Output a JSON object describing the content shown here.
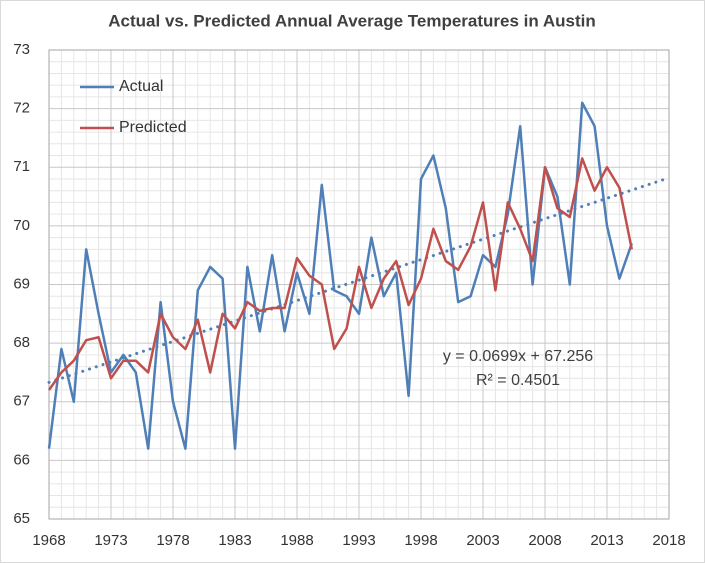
{
  "chart_data": {
    "type": "line",
    "title": "Actual vs. Predicted Annual Average Temperatures in Austin",
    "x": [
      1968,
      1969,
      1970,
      1971,
      1972,
      1973,
      1974,
      1975,
      1976,
      1977,
      1978,
      1979,
      1980,
      1981,
      1982,
      1983,
      1984,
      1985,
      1986,
      1987,
      1988,
      1989,
      1990,
      1991,
      1992,
      1993,
      1994,
      1995,
      1996,
      1997,
      1998,
      1999,
      2000,
      2001,
      2002,
      2003,
      2004,
      2005,
      2006,
      2007,
      2008,
      2009,
      2010,
      2011,
      2012,
      2013,
      2014,
      2015
    ],
    "series": [
      {
        "name": "Actual",
        "color": "#4f7fb7",
        "values": [
          66.2,
          67.9,
          67.0,
          69.6,
          68.5,
          67.5,
          67.8,
          67.5,
          66.2,
          68.7,
          67.0,
          66.2,
          68.9,
          69.3,
          69.1,
          66.2,
          69.3,
          68.2,
          69.5,
          68.2,
          69.2,
          68.5,
          70.7,
          68.9,
          68.8,
          68.5,
          69.8,
          68.8,
          69.2,
          67.1,
          70.8,
          71.2,
          70.3,
          68.7,
          68.8,
          69.5,
          69.3,
          70.2,
          71.7,
          69.0,
          71.0,
          70.5,
          69.0,
          72.1,
          71.7,
          70.0,
          69.1,
          69.7
        ]
      },
      {
        "name": "Predicted",
        "color": "#c0504d",
        "values": [
          67.2,
          67.5,
          67.7,
          68.05,
          68.1,
          67.4,
          67.7,
          67.7,
          67.5,
          68.5,
          68.1,
          67.9,
          68.4,
          67.5,
          68.5,
          68.25,
          68.7,
          68.55,
          68.6,
          68.6,
          69.45,
          69.15,
          69.0,
          67.9,
          68.25,
          69.3,
          68.6,
          69.1,
          69.4,
          68.65,
          69.1,
          69.95,
          69.4,
          69.25,
          69.65,
          70.4,
          68.9,
          70.4,
          69.95,
          69.4,
          71.0,
          70.3,
          70.15,
          71.15,
          70.6,
          71.0,
          70.65,
          69.6
        ]
      }
    ],
    "trendline": {
      "color": "#4f7fb7",
      "x": [
        1968,
        2018
      ],
      "values": [
        67.33,
        70.82
      ]
    },
    "annotations": [
      "y = 0.0699x + 67.256",
      "R² = 0.4501"
    ],
    "xlim": [
      1968,
      2018
    ],
    "xticks": [
      1968,
      1973,
      1978,
      1983,
      1988,
      1993,
      1998,
      2003,
      2008,
      2013,
      2018
    ],
    "ylim": [
      65,
      73
    ],
    "yticks": [
      65,
      66,
      67,
      68,
      69,
      70,
      71,
      72,
      73
    ],
    "grid": true,
    "legend": "top-left"
  }
}
